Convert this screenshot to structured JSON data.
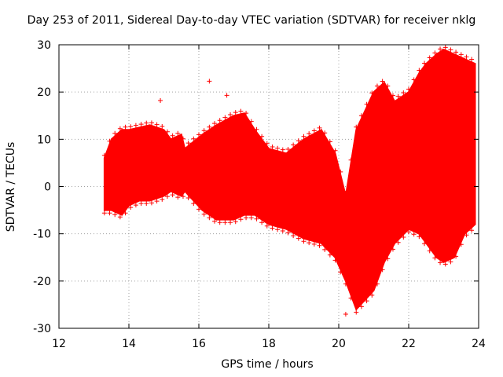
{
  "chart_data": {
    "type": "scatter",
    "title": "Day 253 of 2011, Sidereal Day-to-day VTEC variation (SDTVAR) for receiver nklg",
    "xlabel": "GPS time / hours",
    "ylabel": "SDTVAR / TECUs",
    "xlim": [
      12,
      24
    ],
    "ylim": [
      -30,
      30
    ],
    "xticks": [
      12,
      14,
      16,
      18,
      20,
      22,
      24
    ],
    "yticks": [
      -30,
      -20,
      -10,
      0,
      10,
      20,
      30
    ],
    "xtick_labels": [
      "12",
      "14",
      "16",
      "18",
      "20",
      "22",
      "24"
    ],
    "ytick_labels": [
      "-30",
      "-20",
      "-10",
      "0",
      "10",
      "20",
      "30"
    ],
    "grid": true,
    "marker": "+",
    "color": "#ff0000",
    "series": [
      {
        "name": "SDTVAR envelope (upper)",
        "x": [
          13.3,
          13.5,
          13.8,
          14.0,
          14.3,
          14.6,
          15.0,
          15.2,
          15.5,
          15.6,
          16.1,
          16.5,
          17.0,
          17.3,
          17.6,
          18.0,
          18.5,
          19.0,
          19.5,
          19.9,
          20.2,
          20.5,
          21.0,
          21.3,
          21.6,
          22.0,
          22.3,
          22.5,
          22.8,
          23.0,
          23.3,
          23.6,
          23.9
        ],
        "values": [
          6,
          10,
          12,
          12,
          12.5,
          13,
          12,
          10,
          11,
          8,
          11,
          13,
          15,
          15.5,
          12,
          8,
          7,
          10,
          12,
          7,
          -2,
          12,
          20,
          22,
          18,
          20,
          24,
          26,
          28,
          29,
          28,
          27,
          26
        ]
      },
      {
        "name": "SDTVAR envelope (lower)",
        "x": [
          13.3,
          13.5,
          13.8,
          14.0,
          14.3,
          14.6,
          15.0,
          15.2,
          15.5,
          15.6,
          16.1,
          16.5,
          17.0,
          17.3,
          17.6,
          18.0,
          18.5,
          19.0,
          19.5,
          19.9,
          20.2,
          20.5,
          21.0,
          21.3,
          21.6,
          22.0,
          22.3,
          22.5,
          22.8,
          23.0,
          23.3,
          23.6,
          23.9
        ],
        "values": [
          -5,
          -5,
          -6,
          -4,
          -3,
          -3,
          -2,
          -1,
          -2,
          -1,
          -5,
          -7,
          -7,
          -6,
          -6,
          -8,
          -9,
          -11,
          -12,
          -15,
          -20,
          -26,
          -22,
          -16,
          -12,
          -9,
          -10,
          -12,
          -15,
          -16,
          -15,
          -10,
          -8
        ]
      }
    ],
    "outliers": [
      {
        "x": 16.3,
        "y": 22.3
      },
      {
        "x": 16.8,
        "y": 19.3
      },
      {
        "x": 14.9,
        "y": 18.2
      },
      {
        "x": 23.2,
        "y": 8.3
      },
      {
        "x": 20.2,
        "y": -27
      }
    ]
  }
}
